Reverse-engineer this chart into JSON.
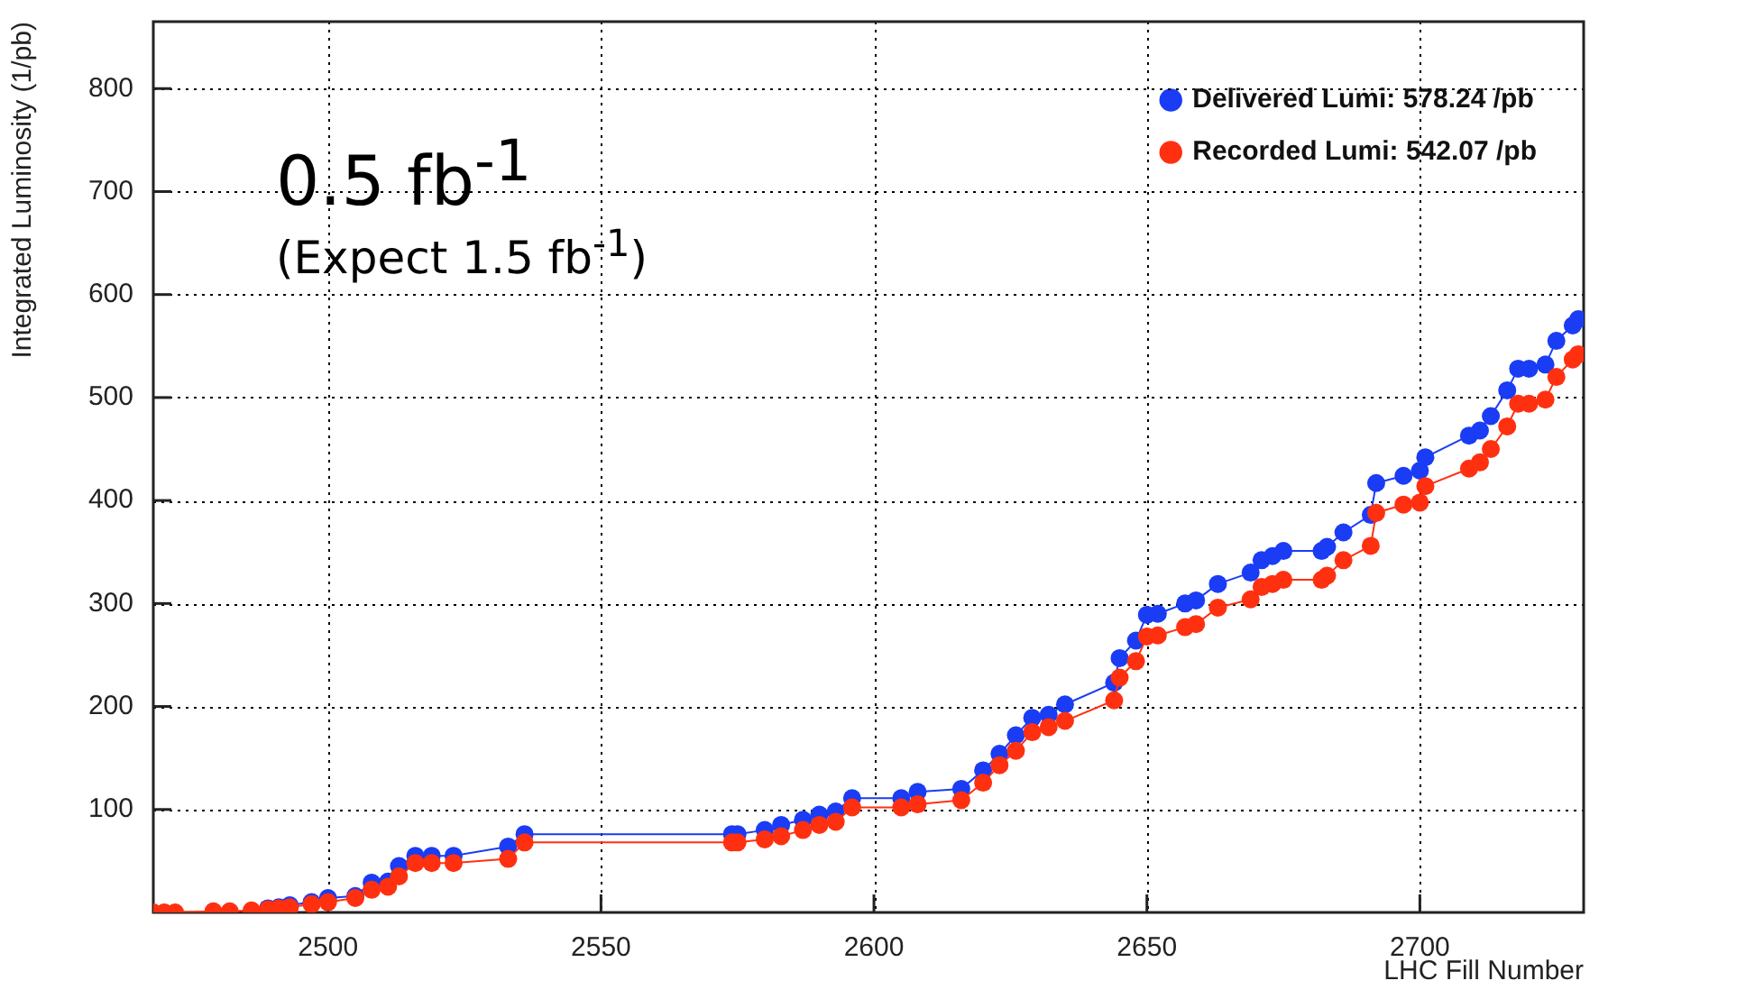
{
  "chart_data": {
    "type": "line",
    "xlabel": "LHC Fill Number",
    "ylabel": "Integrated Luminosity (1/pb)",
    "annotations": [
      "0.5 fb$^{-1}$",
      "(Expect 1.5 fb$^{-1}$)"
    ],
    "x": [
      2468,
      2470,
      2472,
      2479,
      2482,
      2486,
      2489,
      2491,
      2493,
      2497,
      2500,
      2505,
      2508,
      2511,
      2513,
      2516,
      2519,
      2523,
      2533,
      2536,
      2574,
      2575,
      2580,
      2583,
      2587,
      2590,
      2593,
      2596,
      2605,
      2608,
      2616,
      2620,
      2623,
      2626,
      2629,
      2632,
      2635,
      2644,
      2645,
      2648,
      2650,
      2652,
      2657,
      2659,
      2663,
      2669,
      2671,
      2673,
      2675,
      2682,
      2683,
      2686,
      2691,
      2692,
      2697,
      2700,
      2701,
      2709,
      2711,
      2713,
      2716,
      2718,
      2720,
      2723,
      2725,
      2728,
      2729
    ],
    "series": [
      {
        "name": "Delivered Lumi: 578.24 /pb",
        "color": "#1a3cf5",
        "values": [
          null,
          null,
          null,
          null,
          null,
          null,
          4,
          5,
          7,
          10,
          14,
          16,
          29,
          30,
          45,
          55,
          55,
          55,
          64,
          76,
          76,
          76,
          80,
          85,
          90,
          95,
          98,
          111,
          111,
          117,
          120,
          138,
          154,
          172,
          189,
          192,
          202,
          223,
          247,
          264,
          289,
          290,
          300,
          303,
          319,
          330,
          342,
          346,
          351,
          351,
          355,
          369,
          386,
          417,
          424,
          429,
          442,
          463,
          468,
          482,
          507,
          528,
          528,
          532,
          555,
          570,
          576
        ]
      },
      {
        "name": "Recorded Lumi: 542.07 /pb",
        "color": "#ff3010",
        "values": [
          0,
          0,
          0,
          1,
          1,
          2,
          3,
          4,
          5,
          8,
          10,
          14,
          22,
          25,
          35,
          48,
          48,
          48,
          52,
          68,
          68,
          68,
          71,
          74,
          80,
          85,
          88,
          102,
          102,
          105,
          109,
          126,
          143,
          157,
          175,
          180,
          186,
          206,
          228,
          244,
          268,
          269,
          277,
          280,
          296,
          304,
          316,
          319,
          323,
          323,
          327,
          342,
          356,
          388,
          396,
          398,
          414,
          431,
          437,
          450,
          472,
          494,
          494,
          498,
          520,
          537,
          542
        ]
      }
    ],
    "xlim": [
      2468,
      2730
    ],
    "xticks": [
      2500,
      2550,
      2600,
      2650,
      2700
    ],
    "ylim": [
      0,
      865
    ],
    "yticks": [
      100,
      200,
      300,
      400,
      500,
      600,
      700,
      800
    ],
    "grid": true,
    "legend": "top right",
    "marker": "circle",
    "line_style": "solid"
  }
}
